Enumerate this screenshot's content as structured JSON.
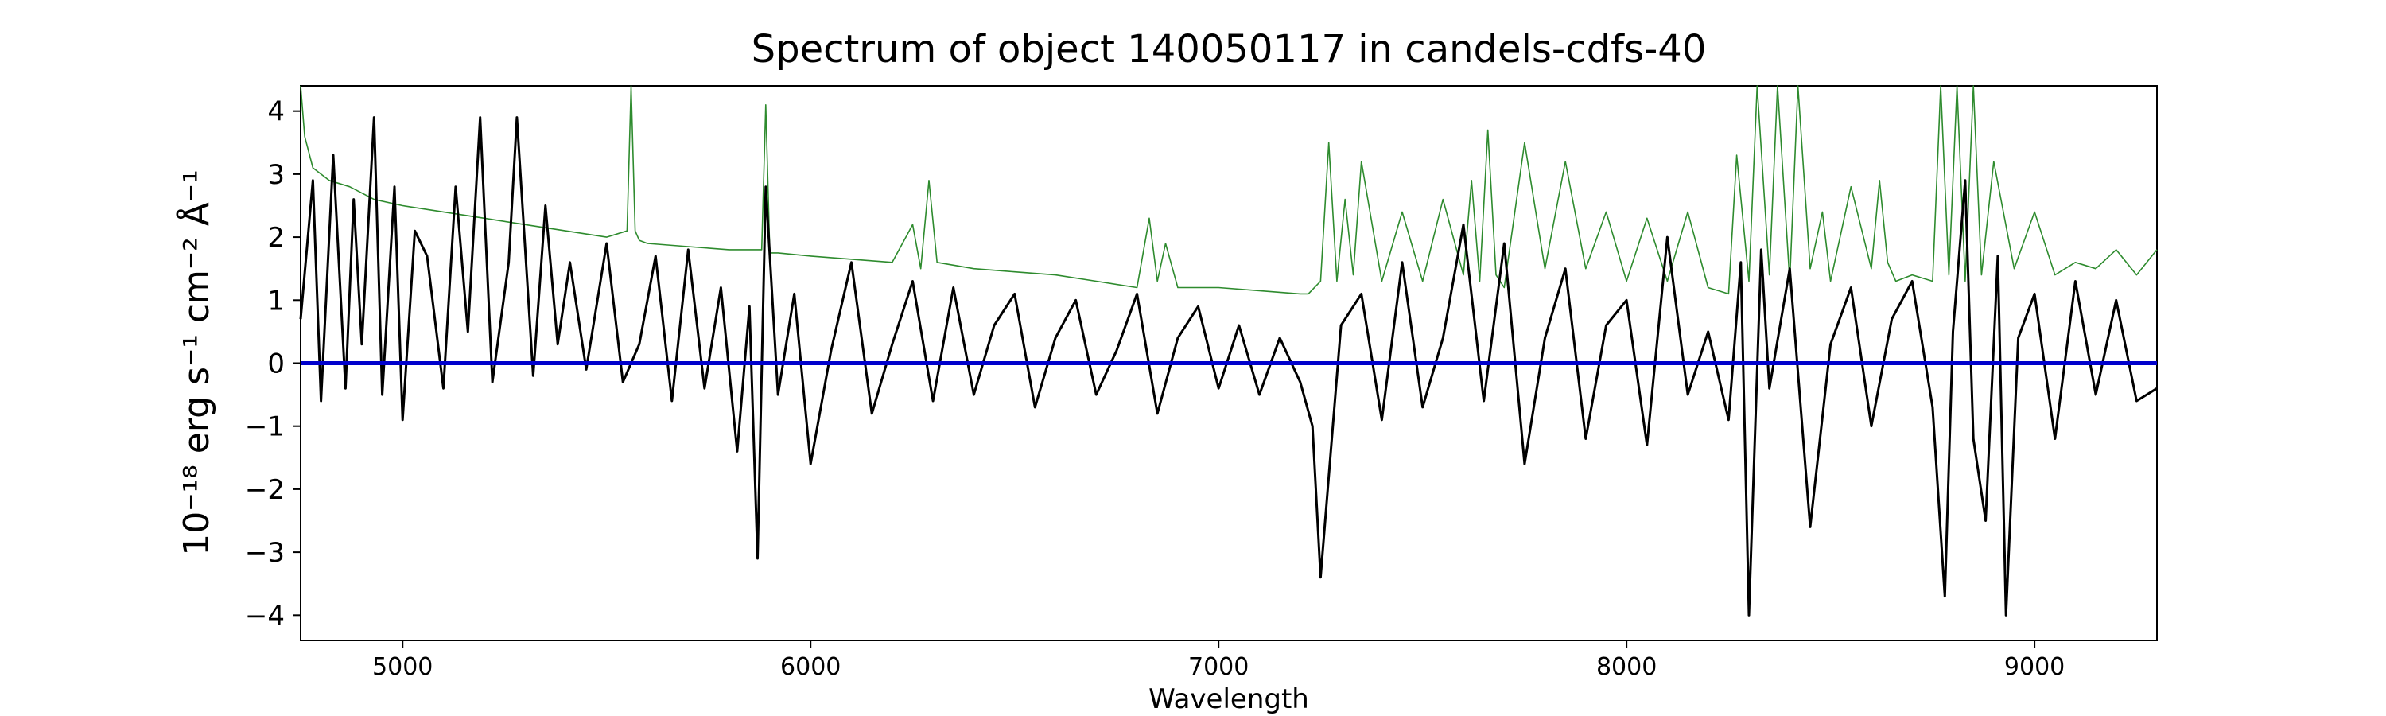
{
  "chart_data": {
    "type": "line",
    "title": "Spectrum of object 140050117 in candels-cdfs-40",
    "xlabel": "Wavelength",
    "ylabel": "10⁻¹⁸ erg s⁻¹ cm⁻² Å⁻¹",
    "xlim": [
      4750,
      9300
    ],
    "ylim": [
      -4.4,
      4.4
    ],
    "xticks": [
      5000,
      6000,
      7000,
      8000,
      9000
    ],
    "yticks": [
      -4,
      -3,
      -2,
      -1,
      0,
      1,
      2,
      3,
      4
    ],
    "grid": false,
    "series": [
      {
        "key": "flux",
        "color": "#000000",
        "x": [
          4750,
          4780,
          4800,
          4830,
          4860,
          4880,
          4900,
          4930,
          4950,
          4980,
          5000,
          5030,
          5060,
          5100,
          5130,
          5160,
          5190,
          5220,
          5260,
          5280,
          5320,
          5350,
          5380,
          5410,
          5450,
          5500,
          5540,
          5580,
          5620,
          5660,
          5700,
          5740,
          5780,
          5820,
          5850,
          5870,
          5890,
          5920,
          5960,
          6000,
          6050,
          6100,
          6150,
          6200,
          6250,
          6300,
          6350,
          6400,
          6450,
          6500,
          6550,
          6600,
          6650,
          6700,
          6750,
          6800,
          6850,
          6900,
          6950,
          7000,
          7050,
          7100,
          7150,
          7200,
          7230,
          7250,
          7300,
          7350,
          7400,
          7450,
          7500,
          7550,
          7600,
          7650,
          7700,
          7750,
          7800,
          7850,
          7900,
          7950,
          8000,
          8050,
          8100,
          8150,
          8200,
          8250,
          8280,
          8300,
          8330,
          8350,
          8400,
          8450,
          8500,
          8550,
          8600,
          8650,
          8700,
          8750,
          8780,
          8800,
          8830,
          8850,
          8880,
          8910,
          8930,
          8960,
          9000,
          9050,
          9100,
          9150,
          9200,
          9250,
          9300
        ],
        "y": [
          0.7,
          2.9,
          -0.6,
          3.3,
          -0.4,
          2.6,
          0.3,
          3.9,
          -0.5,
          2.8,
          -0.9,
          2.1,
          1.7,
          -0.4,
          2.8,
          0.5,
          3.9,
          -0.3,
          1.6,
          3.9,
          -0.2,
          2.5,
          0.3,
          1.6,
          -0.1,
          1.9,
          -0.3,
          0.3,
          1.7,
          -0.6,
          1.8,
          -0.4,
          1.2,
          -1.4,
          0.9,
          -3.1,
          2.8,
          -0.5,
          1.1,
          -1.6,
          0.2,
          1.6,
          -0.8,
          0.3,
          1.3,
          -0.6,
          1.2,
          -0.5,
          0.6,
          1.1,
          -0.7,
          0.4,
          1.0,
          -0.5,
          0.2,
          1.1,
          -0.8,
          0.4,
          0.9,
          -0.4,
          0.6,
          -0.5,
          0.4,
          -0.3,
          -1.0,
          -3.4,
          0.6,
          1.1,
          -0.9,
          1.6,
          -0.7,
          0.4,
          2.2,
          -0.6,
          1.9,
          -1.6,
          0.4,
          1.5,
          -1.2,
          0.6,
          1.0,
          -1.3,
          2.0,
          -0.5,
          0.5,
          -0.9,
          1.6,
          -4.0,
          1.8,
          -0.4,
          1.5,
          -2.6,
          0.3,
          1.2,
          -1.0,
          0.7,
          1.3,
          -0.7,
          -3.7,
          0.5,
          2.9,
          -1.2,
          -2.5,
          1.7,
          -4.0,
          0.4,
          1.1,
          -1.2,
          1.3,
          -0.5,
          1.0,
          -0.6,
          -0.4
        ]
      },
      {
        "key": "error",
        "color": "#2e8b2e",
        "x": [
          4750,
          4760,
          4780,
          4820,
          4870,
          4930,
          5000,
          5100,
          5200,
          5300,
          5400,
          5500,
          5550,
          5560,
          5570,
          5580,
          5600,
          5700,
          5800,
          5880,
          5890,
          5900,
          5920,
          6000,
          6200,
          6250,
          6270,
          6290,
          6310,
          6400,
          6500,
          6600,
          6700,
          6800,
          6830,
          6850,
          6870,
          6900,
          7000,
          7100,
          7200,
          7220,
          7250,
          7270,
          7290,
          7310,
          7330,
          7350,
          7400,
          7450,
          7500,
          7550,
          7600,
          7620,
          7640,
          7660,
          7680,
          7700,
          7750,
          7800,
          7850,
          7900,
          7950,
          8000,
          8050,
          8100,
          8150,
          8200,
          8250,
          8270,
          8300,
          8320,
          8350,
          8370,
          8400,
          8420,
          8450,
          8480,
          8500,
          8550,
          8600,
          8620,
          8640,
          8660,
          8700,
          8750,
          8770,
          8790,
          8810,
          8830,
          8850,
          8870,
          8900,
          8950,
          9000,
          9050,
          9100,
          9150,
          9200,
          9250,
          9300
        ],
        "y": [
          4.5,
          3.6,
          3.1,
          2.9,
          2.8,
          2.6,
          2.5,
          2.4,
          2.3,
          2.2,
          2.1,
          2.0,
          2.1,
          4.5,
          2.1,
          1.95,
          1.9,
          1.85,
          1.8,
          1.8,
          4.1,
          1.75,
          1.75,
          1.7,
          1.6,
          2.2,
          1.5,
          2.9,
          1.6,
          1.5,
          1.45,
          1.4,
          1.3,
          1.2,
          2.3,
          1.3,
          1.9,
          1.2,
          1.2,
          1.15,
          1.1,
          1.1,
          1.3,
          3.5,
          1.3,
          2.6,
          1.4,
          3.2,
          1.3,
          2.4,
          1.3,
          2.6,
          1.4,
          2.9,
          1.3,
          3.7,
          1.4,
          1.2,
          3.5,
          1.5,
          3.2,
          1.5,
          2.4,
          1.3,
          2.3,
          1.3,
          2.4,
          1.2,
          1.1,
          3.3,
          1.3,
          4.5,
          1.4,
          4.5,
          1.3,
          4.5,
          1.5,
          2.4,
          1.3,
          2.8,
          1.5,
          2.9,
          1.6,
          1.3,
          1.4,
          1.3,
          4.5,
          1.4,
          4.5,
          1.3,
          4.5,
          1.4,
          3.2,
          1.5,
          2.4,
          1.4,
          1.6,
          1.5,
          1.8,
          1.4,
          1.8
        ]
      },
      {
        "key": "zero",
        "color": "#0000cc",
        "x": [
          4750,
          9300
        ],
        "y": [
          0,
          0
        ]
      }
    ]
  }
}
